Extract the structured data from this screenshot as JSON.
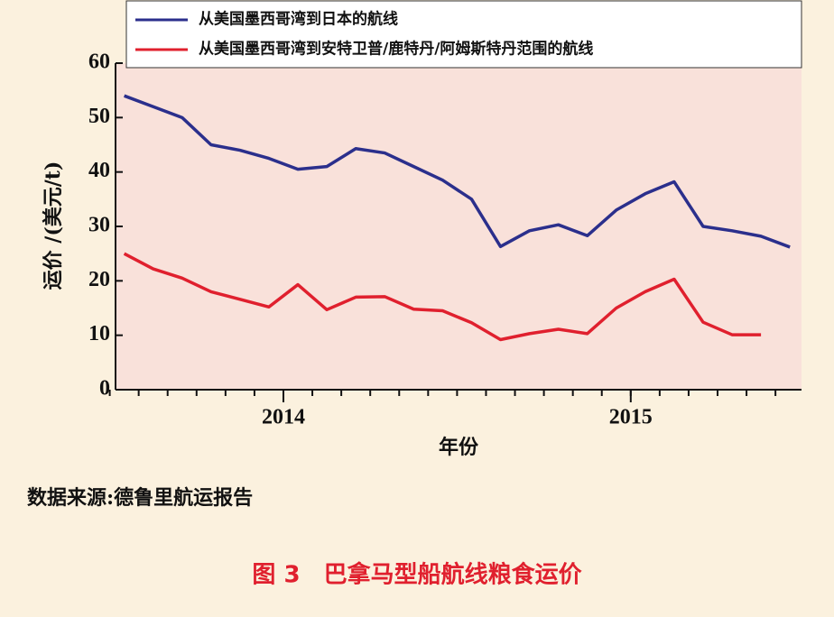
{
  "chart_data": {
    "type": "line",
    "y_label": "运价 /(美元/t)",
    "x_label": "年份",
    "x": [
      0,
      1,
      2,
      3,
      4,
      5,
      6,
      7,
      8,
      9,
      10,
      11,
      12,
      13,
      14,
      15,
      16,
      17,
      18,
      19,
      20,
      21,
      22,
      23
    ],
    "xlim": [
      -0.3,
      23.4
    ],
    "xticks": [
      {
        "value": 5.5,
        "label": "2014"
      },
      {
        "value": 17.5,
        "label": "2015"
      }
    ],
    "ylim": [
      0,
      60
    ],
    "yticks": [
      0,
      10,
      20,
      30,
      40,
      50,
      60
    ],
    "legend": "top",
    "series": [
      {
        "name": "从美国墨西哥湾到日本的航线",
        "color": "#2b2f8c",
        "values": [
          54,
          52,
          50,
          45,
          44,
          42.5,
          40.5,
          41,
          44.3,
          43.5,
          41,
          38.5,
          35,
          26.3,
          29.2,
          30.3,
          28.3,
          33,
          36,
          38.2,
          30,
          29.2,
          28.2,
          26.2
        ]
      },
      {
        "name": "从美国墨西哥湾到安特卫普/鹿特丹/阿姆斯特丹范围的航线",
        "color": "#e0202e",
        "values": [
          25,
          22.2,
          20.5,
          18,
          16.6,
          15.2,
          19.3,
          14.7,
          17,
          17.1,
          14.8,
          14.5,
          12.3,
          9.2,
          10.3,
          11.1,
          10.3,
          15,
          18,
          20.3,
          12.4,
          10.1,
          10.1,
          null
        ]
      }
    ]
  },
  "source": "数据来源:德鲁里航运报告",
  "caption": "图 3　巴拿马型船航线粮食运价"
}
